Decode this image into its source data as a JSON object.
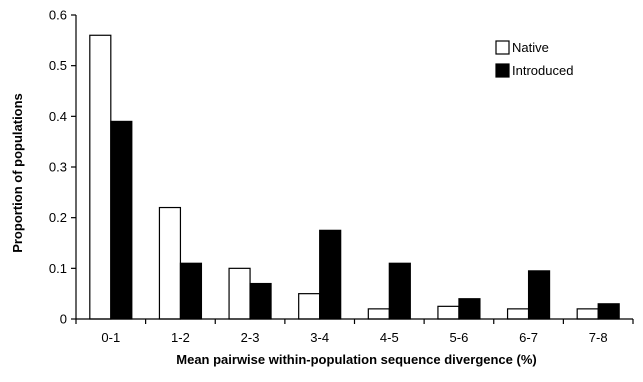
{
  "chart_data": {
    "type": "bar",
    "title": "",
    "xlabel": "Mean pairwise within-population sequence divergence (%)",
    "ylabel": "Proportion of populations",
    "categories": [
      "0-1",
      "1-2",
      "2-3",
      "3-4",
      "4-5",
      "5-6",
      "6-7",
      "7-8"
    ],
    "series": [
      {
        "name": "Native",
        "color": "#ffffff",
        "values": [
          0.56,
          0.22,
          0.1,
          0.05,
          0.02,
          0.025,
          0.02,
          0.02
        ]
      },
      {
        "name": "Introduced",
        "color": "#000000",
        "values": [
          0.39,
          0.11,
          0.07,
          0.175,
          0.11,
          0.04,
          0.095,
          0.03
        ]
      }
    ],
    "ylim": [
      0,
      0.6
    ],
    "yticks": [
      "0",
      "0.1",
      "0.2",
      "0.3",
      "0.4",
      "0.5",
      "0.6"
    ],
    "ytick_values": [
      0,
      0.1,
      0.2,
      0.3,
      0.4,
      0.5,
      0.6
    ],
    "grid": false,
    "legend_position": "top-right"
  }
}
